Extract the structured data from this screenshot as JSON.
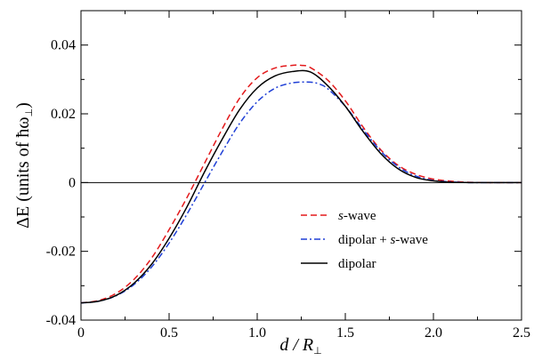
{
  "chart_data": {
    "type": "line",
    "title": "",
    "xlabel": {
      "main": "d / R",
      "sub": "⊥"
    },
    "ylabel": {
      "main": "ΔE (units of ħω",
      "sub": "⊥",
      "close": ")"
    },
    "xlim": [
      0,
      2.5
    ],
    "ylim": [
      -0.04,
      0.05
    ],
    "x_ticks": [
      0,
      0.5,
      1.0,
      1.5,
      2.0,
      2.5
    ],
    "x_tick_labels": [
      "0",
      "0.5",
      "1.0",
      "1.5",
      "2.0",
      "2.5"
    ],
    "y_ticks": [
      -0.04,
      -0.02,
      0,
      0.02,
      0.04
    ],
    "y_tick_labels": [
      "-0.04",
      "-0.02",
      "0",
      "0.02",
      "0.04"
    ],
    "grid": false,
    "legend_position": "center-right",
    "zero_line": true,
    "series": [
      {
        "name": "s-wave",
        "color": "#e31a1c",
        "dash": "dashed",
        "x": [
          0,
          0.1,
          0.2,
          0.3,
          0.4,
          0.5,
          0.6,
          0.7,
          0.8,
          0.9,
          1.0,
          1.1,
          1.2,
          1.25,
          1.3,
          1.4,
          1.5,
          1.6,
          1.7,
          1.8,
          1.9,
          2.0,
          2.1,
          2.2,
          2.3,
          2.4,
          2.5
        ],
        "y": [
          -0.035,
          -0.0343,
          -0.0322,
          -0.0282,
          -0.022,
          -0.0137,
          -0.0045,
          0.0055,
          0.0155,
          0.0245,
          0.0305,
          0.0333,
          0.0341,
          0.0341,
          0.0335,
          0.0298,
          0.0238,
          0.0162,
          0.0096,
          0.005,
          0.0024,
          0.001,
          0.0004,
          0.0001,
          0.0,
          0.0,
          0.0
        ]
      },
      {
        "name": "dipolar + s-wave",
        "color": "#1f3fd6",
        "dash": "dashdot",
        "x": [
          0,
          0.1,
          0.2,
          0.3,
          0.4,
          0.5,
          0.6,
          0.7,
          0.8,
          0.9,
          1.0,
          1.1,
          1.2,
          1.3,
          1.35,
          1.4,
          1.5,
          1.6,
          1.7,
          1.8,
          1.9,
          2.0,
          2.1,
          2.2,
          2.3,
          2.4,
          2.5
        ],
        "y": [
          -0.035,
          -0.0345,
          -0.0329,
          -0.0297,
          -0.0246,
          -0.0176,
          -0.0093,
          -0.0002,
          0.0088,
          0.0172,
          0.0235,
          0.0274,
          0.029,
          0.0292,
          0.0287,
          0.0273,
          0.0222,
          0.0155,
          0.0092,
          0.0046,
          0.0019,
          0.0006,
          0.0002,
          0.0,
          0.0,
          0.0,
          0.0
        ]
      },
      {
        "name": "dipolar",
        "color": "#000000",
        "dash": "solid",
        "x": [
          0,
          0.1,
          0.2,
          0.3,
          0.4,
          0.5,
          0.6,
          0.7,
          0.8,
          0.9,
          1.0,
          1.1,
          1.2,
          1.3,
          1.4,
          1.5,
          1.6,
          1.7,
          1.8,
          1.9,
          2.0,
          2.1,
          2.2,
          2.3,
          2.4,
          2.5
        ],
        "y": [
          -0.035,
          -0.0345,
          -0.0328,
          -0.0293,
          -0.0238,
          -0.0162,
          -0.0072,
          0.003,
          0.0125,
          0.0212,
          0.0275,
          0.031,
          0.0323,
          0.0322,
          0.0282,
          0.0222,
          0.0149,
          0.0085,
          0.004,
          0.0015,
          0.0005,
          0.0001,
          0.0,
          0.0,
          0.0,
          0.0
        ]
      }
    ],
    "legend": [
      {
        "label_em": "s",
        "label_rest": "-wave"
      },
      {
        "label_em": "",
        "label_rest": "dipolar + ",
        "label_em2": "s",
        "label_rest2": "-wave"
      },
      {
        "label_em": "",
        "label_rest": "dipolar"
      }
    ]
  }
}
